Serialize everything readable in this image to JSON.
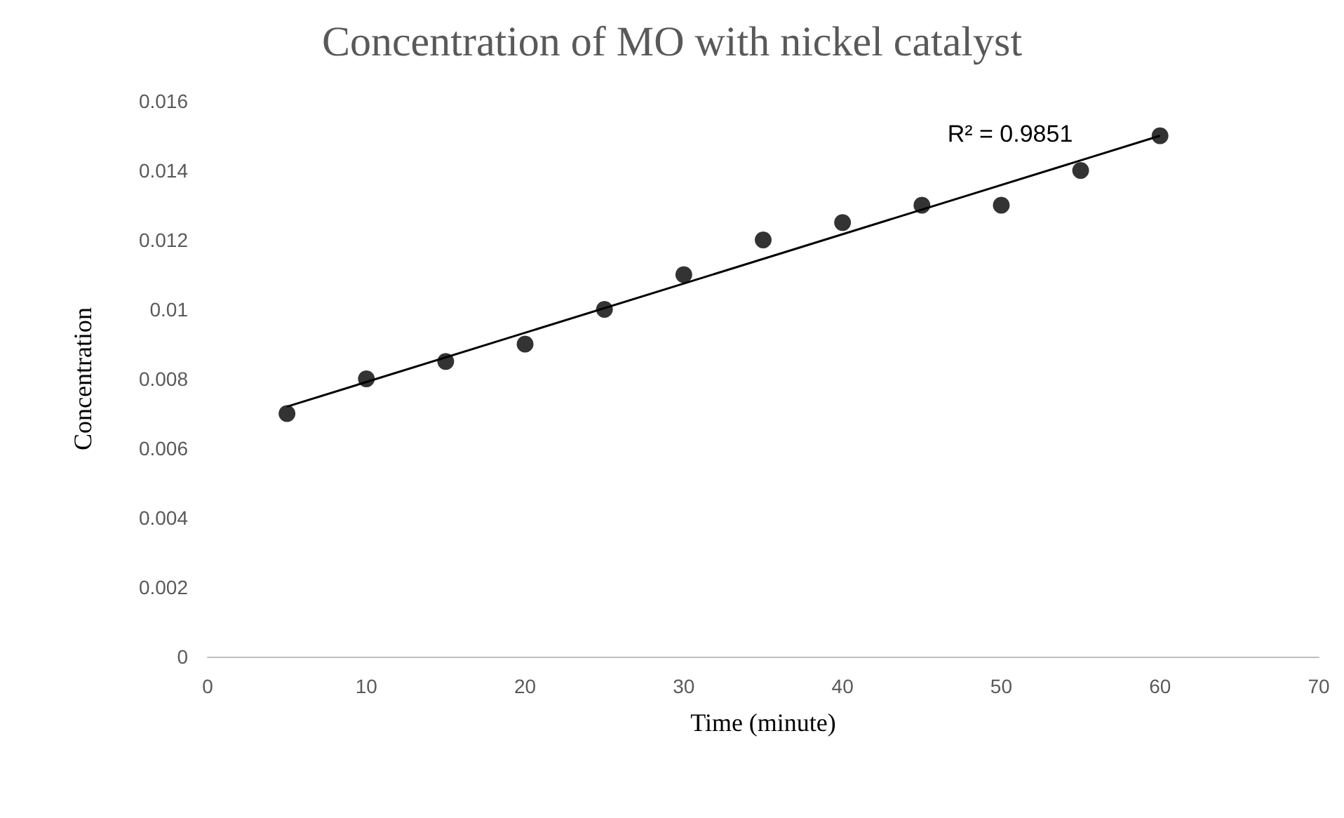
{
  "chart_data": {
    "type": "scatter",
    "title": "Concentration of MO with nickel catalyst",
    "xlabel": "Time (minute)",
    "ylabel": "Concentration",
    "x": [
      5,
      10,
      15,
      20,
      25,
      30,
      35,
      40,
      45,
      50,
      55,
      60
    ],
    "series": [
      {
        "color": "#000000",
        "marker": "circle",
        "values": [
          0.007,
          0.008,
          0.0085,
          0.009,
          0.01,
          0.011,
          0.012,
          0.0125,
          0.013,
          0.013,
          0.014,
          0.015
        ]
      },
      {
        "type": "line",
        "color": "#000000",
        "marker": "none",
        "x": [
          5,
          60
        ],
        "values": [
          0.0072,
          0.015
        ]
      }
    ],
    "xlim": [
      0,
      70
    ],
    "xticks": [
      0,
      10,
      20,
      30,
      40,
      50,
      60,
      70
    ],
    "ylim": [
      0,
      0.016
    ],
    "yticks": [
      0,
      0.002,
      0.004,
      0.006,
      0.008,
      0.01,
      0.012,
      0.014,
      0.016
    ],
    "annotations": [
      "R² = 0.9851"
    ],
    "grid": false
  }
}
